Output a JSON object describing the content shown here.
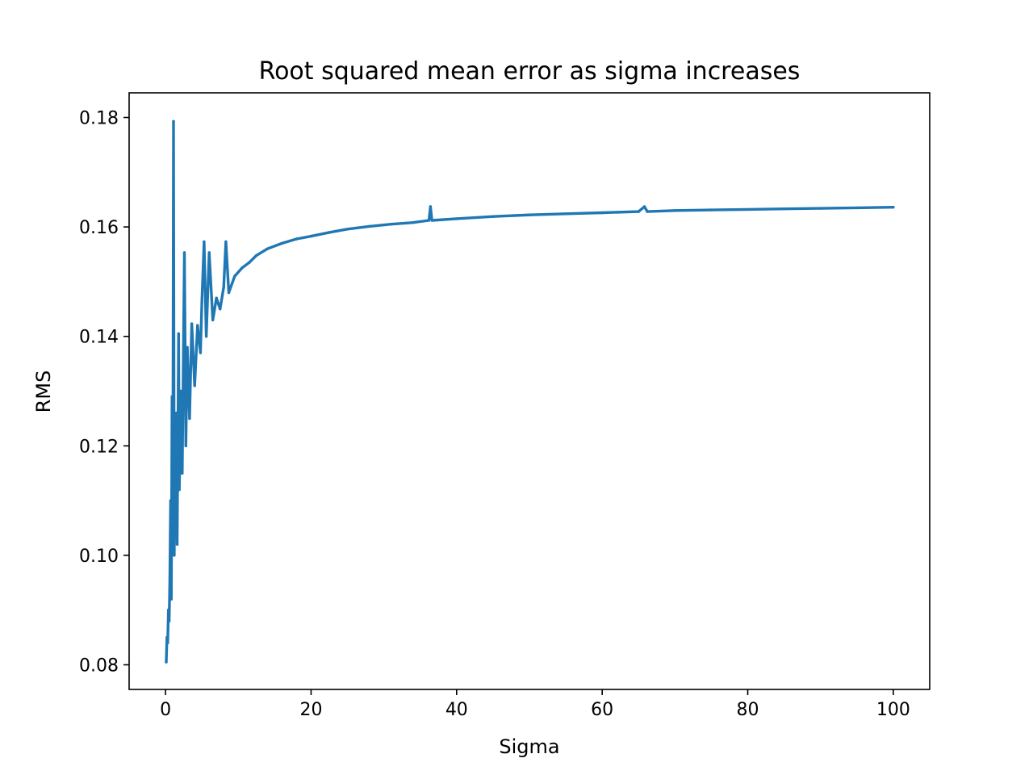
{
  "chart_data": {
    "type": "line",
    "title": "Root squared mean error as sigma increases",
    "xlabel": "Sigma",
    "ylabel": "RMS",
    "xlim": [
      -5,
      105
    ],
    "ylim": [
      0.0755,
      0.1845
    ],
    "xticks": [
      0,
      20,
      40,
      60,
      80,
      100
    ],
    "yticks": [
      0.08,
      0.1,
      0.12,
      0.14,
      0.16,
      0.18
    ],
    "xtick_labels": [
      "0",
      "20",
      "40",
      "60",
      "80",
      "100"
    ],
    "ytick_labels": [
      "0.08",
      "0.10",
      "0.12",
      "0.14",
      "0.16",
      "0.18"
    ],
    "grid": false,
    "series": [
      {
        "color": "#1f77b4",
        "points": [
          [
            0.1,
            0.0805
          ],
          [
            0.2,
            0.085
          ],
          [
            0.3,
            0.084
          ],
          [
            0.4,
            0.09
          ],
          [
            0.5,
            0.088
          ],
          [
            0.6,
            0.096
          ],
          [
            0.7,
            0.11
          ],
          [
            0.8,
            0.092
          ],
          [
            0.9,
            0.129
          ],
          [
            1.0,
            0.105
          ],
          [
            1.1,
            0.1793
          ],
          [
            1.2,
            0.1
          ],
          [
            1.3,
            0.123
          ],
          [
            1.4,
            0.108
          ],
          [
            1.5,
            0.126
          ],
          [
            1.6,
            0.102
          ],
          [
            1.8,
            0.1405
          ],
          [
            1.9,
            0.112
          ],
          [
            2.1,
            0.13
          ],
          [
            2.3,
            0.115
          ],
          [
            2.6,
            0.1553
          ],
          [
            2.8,
            0.12
          ],
          [
            3.0,
            0.138
          ],
          [
            3.3,
            0.125
          ],
          [
            3.6,
            0.1423
          ],
          [
            4.0,
            0.131
          ],
          [
            4.4,
            0.142
          ],
          [
            4.8,
            0.137
          ],
          [
            5.0,
            0.1465
          ],
          [
            5.3,
            0.1573
          ],
          [
            5.6,
            0.14
          ],
          [
            6.0,
            0.1553
          ],
          [
            6.5,
            0.143
          ],
          [
            7.0,
            0.147
          ],
          [
            7.5,
            0.145
          ],
          [
            8.0,
            0.149
          ],
          [
            8.3,
            0.1573
          ],
          [
            8.7,
            0.148
          ],
          [
            9.5,
            0.151
          ],
          [
            10.5,
            0.1525
          ],
          [
            11.5,
            0.1535
          ],
          [
            12.5,
            0.1548
          ],
          [
            14.0,
            0.156
          ],
          [
            16.0,
            0.157
          ],
          [
            18.0,
            0.1578
          ],
          [
            20.0,
            0.1583
          ],
          [
            22.5,
            0.159
          ],
          [
            25.0,
            0.1596
          ],
          [
            28.0,
            0.1601
          ],
          [
            31.0,
            0.1605
          ],
          [
            34.0,
            0.1608
          ],
          [
            36.2,
            0.1612
          ],
          [
            36.4,
            0.1637
          ],
          [
            36.6,
            0.1612
          ],
          [
            40.0,
            0.1615
          ],
          [
            45.0,
            0.1619
          ],
          [
            50.0,
            0.1622
          ],
          [
            55.0,
            0.1624
          ],
          [
            60.0,
            0.1626
          ],
          [
            65.0,
            0.1628
          ],
          [
            65.8,
            0.1637
          ],
          [
            66.2,
            0.1628
          ],
          [
            70.0,
            0.163
          ],
          [
            75.0,
            0.1631
          ],
          [
            80.0,
            0.1632
          ],
          [
            85.0,
            0.1633
          ],
          [
            90.0,
            0.1634
          ],
          [
            95.0,
            0.1635
          ],
          [
            100.0,
            0.1636
          ]
        ]
      }
    ]
  }
}
